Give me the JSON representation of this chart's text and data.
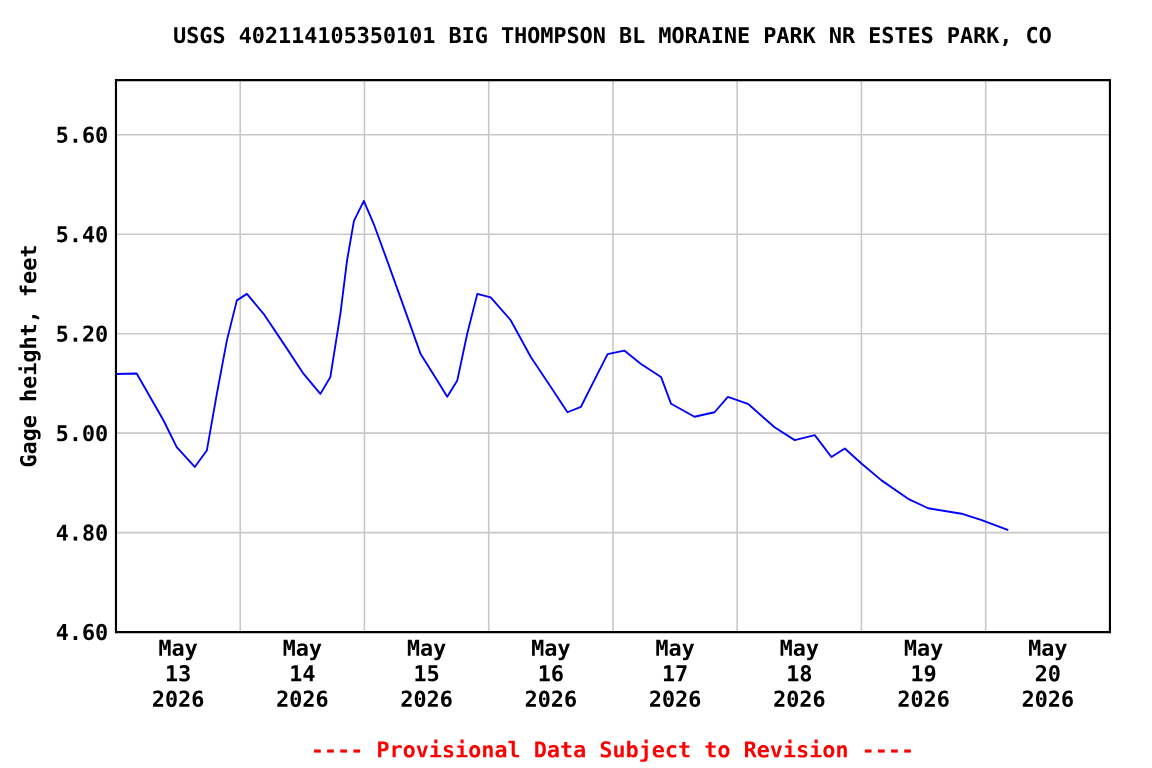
{
  "chart_data": {
    "type": "line",
    "title": "USGS 402114105350101 BIG THOMPSON BL MORAINE PARK NR ESTES PARK, CO",
    "ylabel": "Gage height, feet",
    "annotations": [
      "---- Provisional Data Subject to Revision ----"
    ],
    "x": [
      "2026-05-13T00:07",
      "2026-05-13T04:00",
      "2026-05-13T06:35",
      "2026-05-13T09:10",
      "2026-05-13T11:44",
      "2026-05-13T15:13",
      "2026-05-13T17:33",
      "2026-05-13T19:29",
      "2026-05-13T21:25",
      "2026-05-13T23:21",
      "2026-05-14T01:18",
      "2026-05-14T04:31",
      "2026-05-14T08:23",
      "2026-05-14T12:15",
      "2026-05-14T15:29",
      "2026-05-14T17:25",
      "2026-05-14T19:21",
      "2026-05-14T20:38",
      "2026-05-14T21:58",
      "2026-05-14T23:53",
      "2026-05-15T01:49",
      "2026-05-15T04:23",
      "2026-05-15T07:38",
      "2026-05-15T10:51",
      "2026-05-15T14:04",
      "2026-05-15T15:59",
      "2026-05-15T17:56",
      "2026-05-15T19:51",
      "2026-05-15T21:48",
      "2026-05-16T00:23",
      "2026-05-16T04:15",
      "2026-05-16T08:08",
      "2026-05-16T12:00",
      "2026-05-16T15:13",
      "2026-05-16T17:49",
      "2026-05-16T20:23",
      "2026-05-16T22:58",
      "2026-05-17T02:11",
      "2026-05-17T05:25",
      "2026-05-17T09:17",
      "2026-05-17T11:14",
      "2026-05-17T15:45",
      "2026-05-17T19:38",
      "2026-05-17T22:12",
      "2026-05-18T02:04",
      "2026-05-18T07:13",
      "2026-05-18T11:07",
      "2026-05-18T14:59",
      "2026-05-18T18:12",
      "2026-05-18T20:47",
      "2026-05-19T00:00",
      "2026-05-19T03:52",
      "2026-05-19T09:01",
      "2026-05-19T12:53",
      "2026-05-19T19:21",
      "2026-05-19T23:14",
      "2026-05-20T04:22"
    ],
    "series": [
      {
        "color": "#0000ff",
        "values": [
          5.119,
          5.12,
          5.073,
          5.026,
          4.972,
          4.932,
          4.965,
          5.079,
          5.186,
          5.267,
          5.28,
          5.24,
          5.18,
          5.119,
          5.079,
          5.113,
          5.24,
          5.347,
          5.427,
          5.467,
          5.42,
          5.347,
          5.253,
          5.159,
          5.106,
          5.073,
          5.106,
          5.2,
          5.28,
          5.273,
          5.227,
          5.153,
          5.093,
          5.042,
          5.053,
          5.106,
          5.159,
          5.166,
          5.139,
          5.113,
          5.059,
          5.033,
          5.042,
          5.073,
          5.059,
          5.012,
          4.986,
          4.996,
          4.952,
          4.969,
          4.939,
          4.905,
          4.868,
          4.849,
          4.838,
          4.825,
          4.805
        ]
      }
    ],
    "xlim": [
      "2026-05-13",
      "2026-05-21"
    ],
    "xticks": [
      {
        "value": "2026-05-13",
        "label": null
      },
      {
        "value": "2026-05-14",
        "label": null
      },
      {
        "value": "2026-05-15",
        "label": null
      },
      {
        "value": "2026-05-16",
        "label": null
      },
      {
        "value": "2026-05-17",
        "label": null
      },
      {
        "value": "2026-05-18",
        "label": null
      },
      {
        "value": "2026-05-19",
        "label": null
      },
      {
        "value": "2026-05-20",
        "label": null
      },
      {
        "value": "2026-05-21",
        "label": null
      },
      {
        "value": "2026-05-13T12:00",
        "label": "May 13 2026"
      },
      {
        "value": "2026-05-14T12:00",
        "label": "May 14 2026"
      },
      {
        "value": "2026-05-15T12:00",
        "label": "May 15 2026"
      },
      {
        "value": "2026-05-16T12:00",
        "label": "May 16 2026"
      },
      {
        "value": "2026-05-17T12:00",
        "label": "May 17 2026"
      },
      {
        "value": "2026-05-18T12:00",
        "label": "May 18 2026"
      },
      {
        "value": "2026-05-19T12:00",
        "label": "May 19 2026"
      },
      {
        "value": "2026-05-20T12:00",
        "label": "May 20 2026"
      }
    ],
    "ylim": [
      4.6,
      5.71
    ],
    "yticks": [
      {
        "value": 4.6,
        "label": "4.60"
      },
      {
        "value": 4.8,
        "label": "4.80"
      },
      {
        "value": 5.0,
        "label": "5.00"
      },
      {
        "value": 5.2,
        "label": "5.20"
      },
      {
        "value": 5.4,
        "label": "5.40"
      },
      {
        "value": 5.6,
        "label": "5.60"
      }
    ],
    "grid": true,
    "marker": "none",
    "line_style": "solid"
  }
}
